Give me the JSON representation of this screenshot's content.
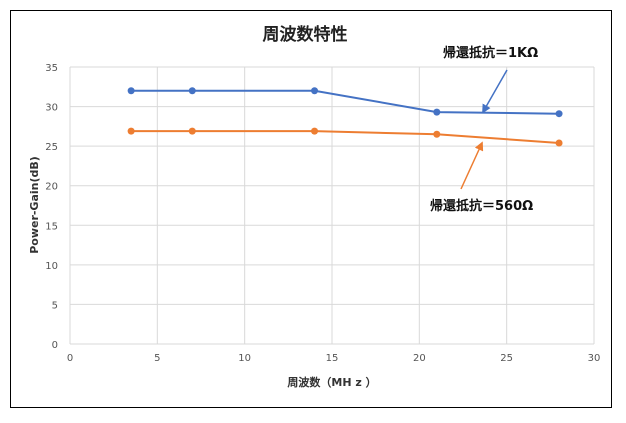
{
  "chart_data": {
    "type": "line",
    "title": "周波数特性",
    "xlabel": "周波数（MH z ）",
    "ylabel": "Power-Gain(dB)",
    "xlim": [
      0,
      30
    ],
    "ylim": [
      0,
      35
    ],
    "xticks": [
      0,
      5,
      10,
      15,
      20,
      25,
      30
    ],
    "yticks": [
      0,
      5,
      10,
      15,
      20,
      25,
      30,
      35
    ],
    "grid": true,
    "legend": "none",
    "series": [
      {
        "annotation": "帰還抵抗＝1KΩ",
        "color": "#4472C4",
        "points": [
          [
            3.5,
            32.0
          ],
          [
            7.0,
            32.0
          ],
          [
            14.0,
            32.0
          ],
          [
            21.0,
            29.3
          ],
          [
            28.0,
            29.1
          ]
        ]
      },
      {
        "annotation": "帰還抵抗＝560Ω",
        "color": "#ED7D31",
        "points": [
          [
            3.5,
            26.9
          ],
          [
            7.0,
            26.9
          ],
          [
            14.0,
            26.9
          ],
          [
            21.0,
            26.5
          ],
          [
            28.0,
            25.4
          ]
        ]
      }
    ]
  }
}
